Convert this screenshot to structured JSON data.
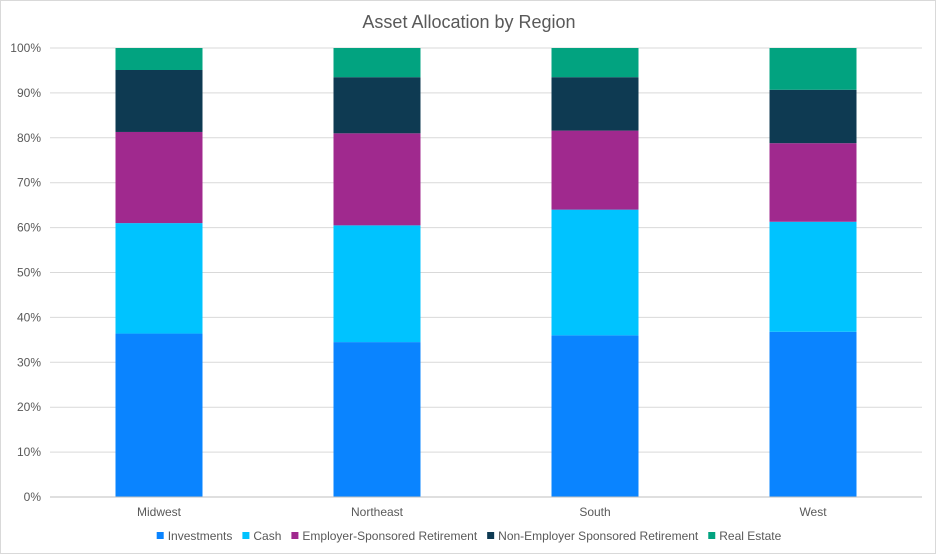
{
  "chart_data": {
    "type": "bar",
    "stacked": true,
    "percent_stacked": true,
    "title": "Asset Allocation by Region",
    "xlabel": "",
    "ylabel": "",
    "categories": [
      "Midwest",
      "Northeast",
      "South",
      "West"
    ],
    "ylim": [
      0,
      100
    ],
    "yticks": [
      "0%",
      "10%",
      "20%",
      "30%",
      "40%",
      "50%",
      "60%",
      "70%",
      "80%",
      "90%",
      "100%"
    ],
    "grid": true,
    "legend_position": "bottom",
    "series": [
      {
        "name": "Investments",
        "color": "#0a84ff",
        "values": [
          36.4,
          34.5,
          36.0,
          36.8
        ]
      },
      {
        "name": "Cash",
        "color": "#00c3ff",
        "values": [
          24.6,
          26.0,
          28.0,
          24.5
        ]
      },
      {
        "name": "Employer-Sponsored Retirement",
        "color": "#a0298e",
        "values": [
          20.3,
          20.5,
          17.6,
          17.5
        ]
      },
      {
        "name": "Non-Employer Sponsored Retirement",
        "color": "#0e3a52",
        "values": [
          13.8,
          12.5,
          11.9,
          11.9
        ]
      },
      {
        "name": "Real Estate",
        "color": "#02a380",
        "values": [
          4.9,
          6.5,
          6.5,
          9.3
        ]
      }
    ],
    "colors": {
      "gridline": "#d9d9d9",
      "axis": "#bfbfbf",
      "text": "#595959"
    }
  }
}
